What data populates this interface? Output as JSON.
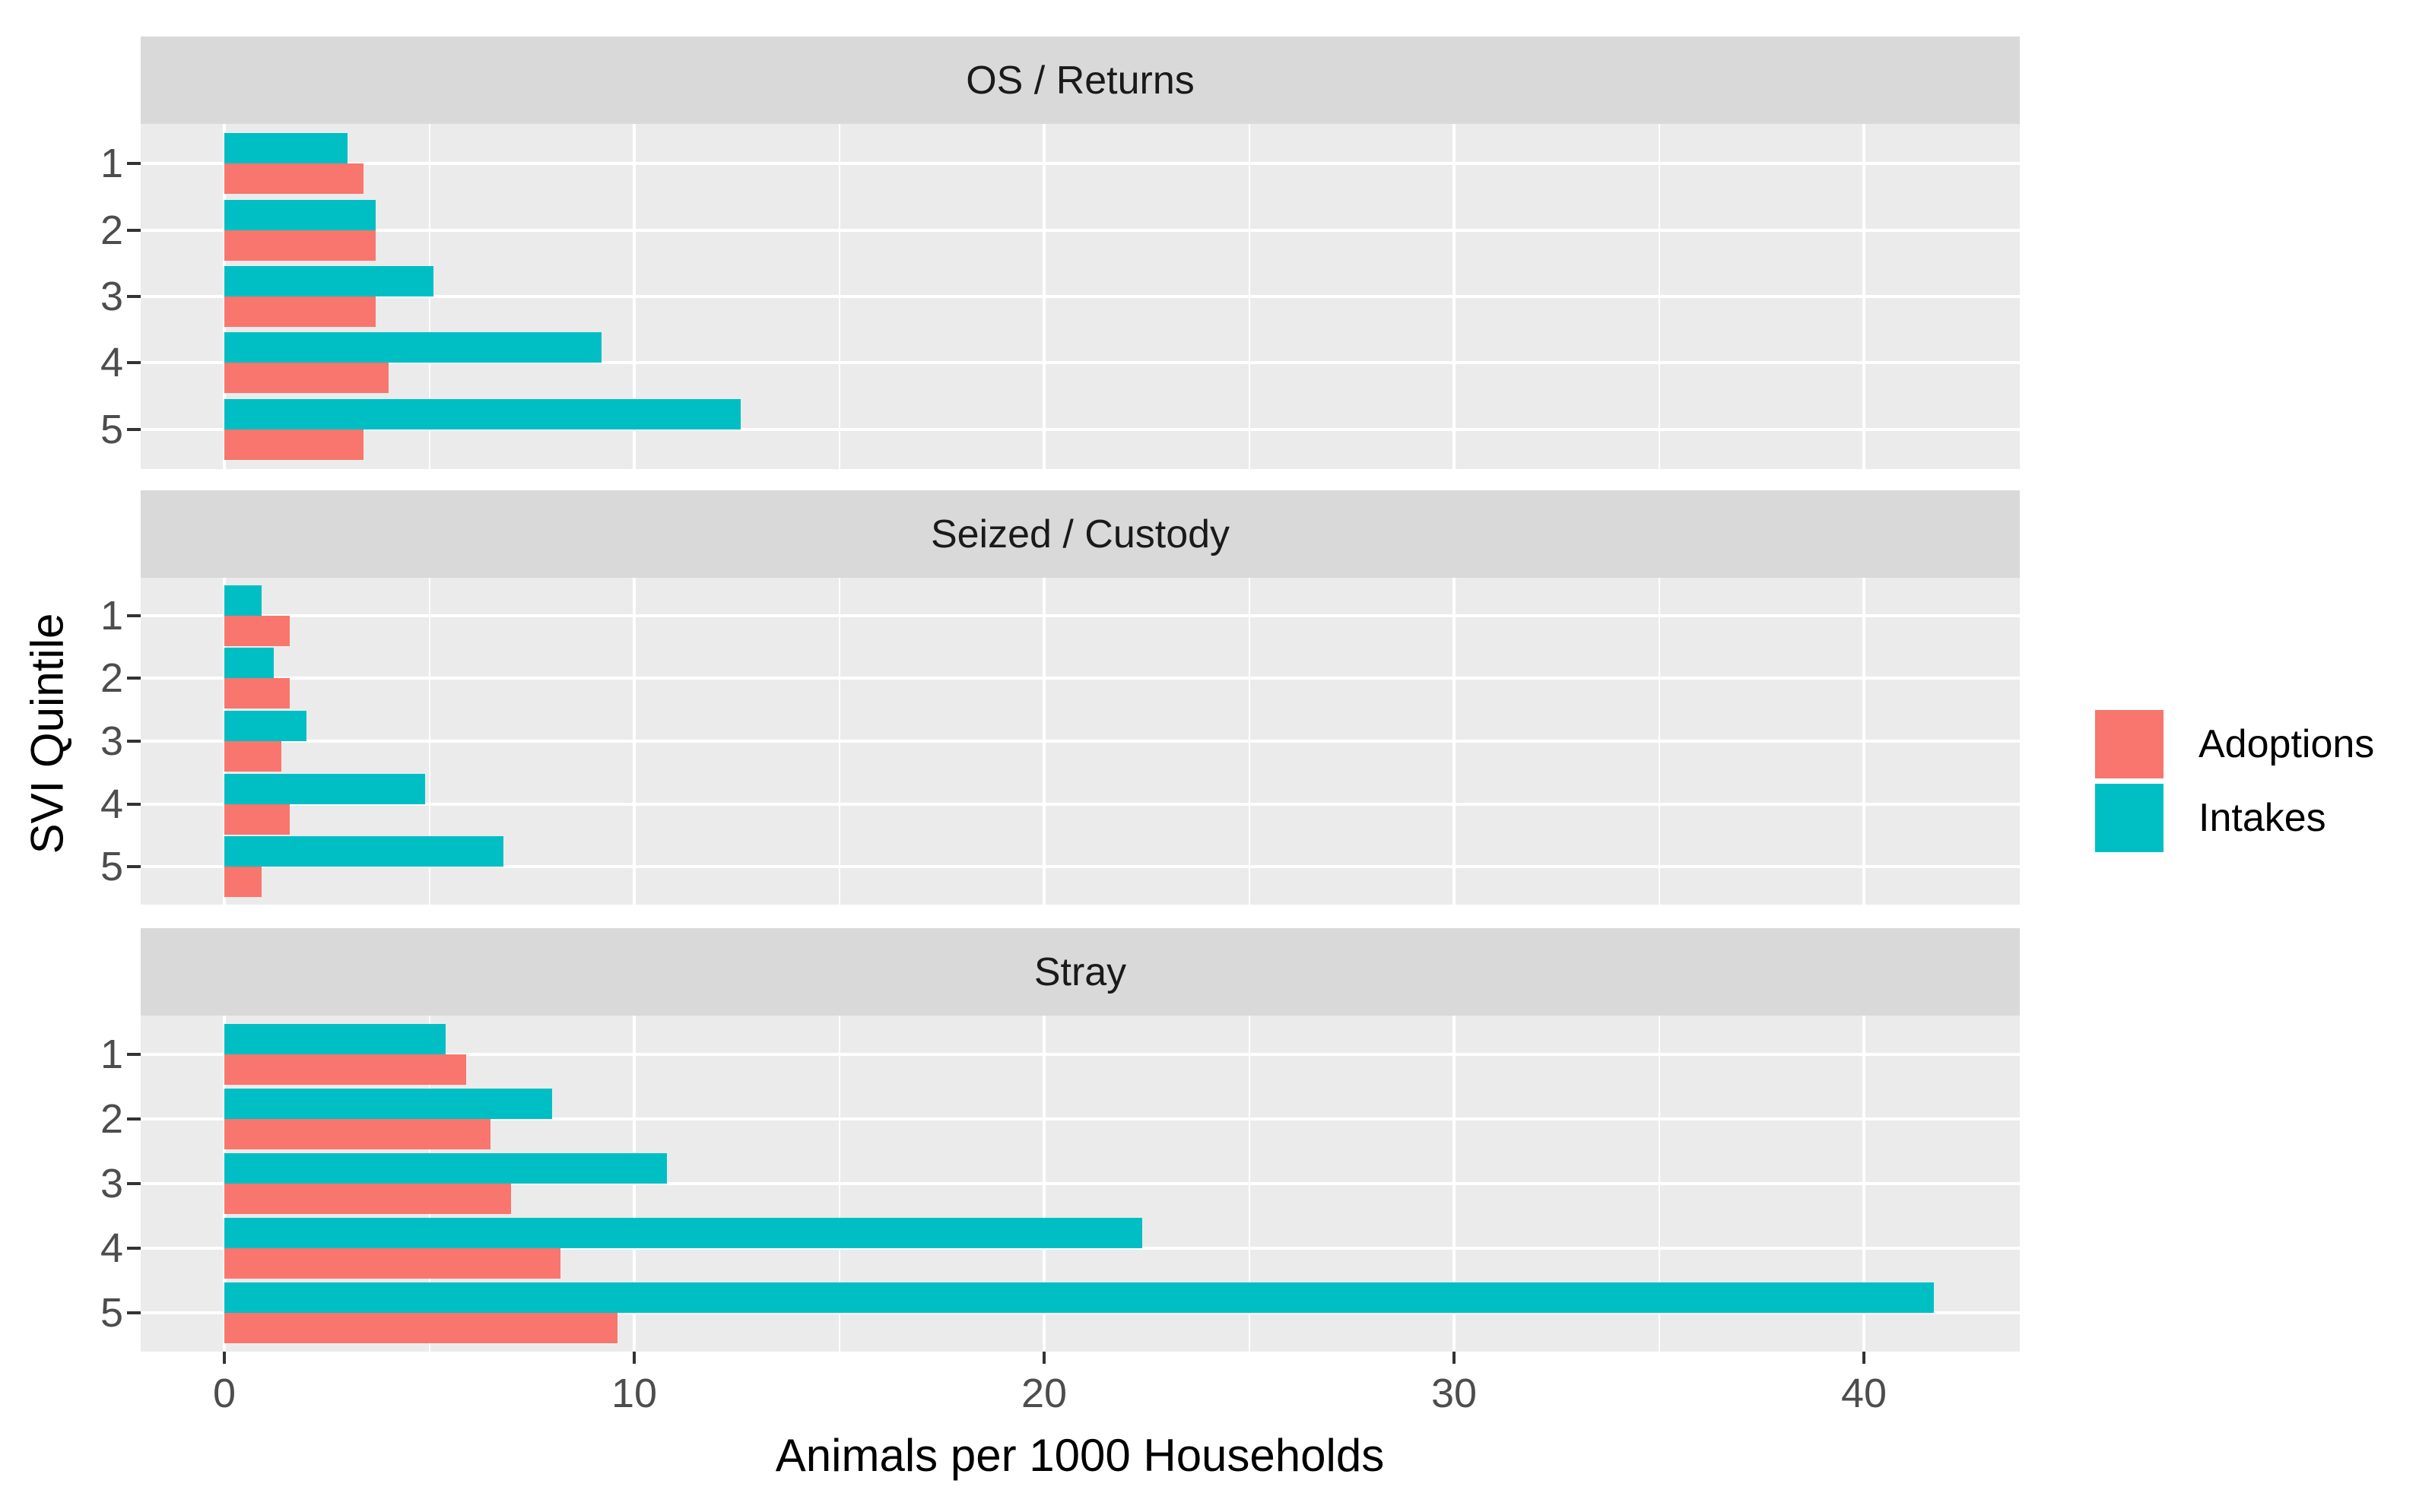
{
  "chart_data": {
    "type": "bar",
    "orientation": "horizontal",
    "title": "",
    "xlabel": "Animals per 1000 Households",
    "ylabel": "SVI Quintile",
    "categories": [
      "1",
      "2",
      "3",
      "4",
      "5"
    ],
    "x_ticks": [
      "0",
      "10",
      "20",
      "30",
      "40"
    ],
    "x_tick_values": [
      0,
      10,
      20,
      30,
      40
    ],
    "x_minor_values": [
      5,
      15,
      25,
      35
    ],
    "xlim": [
      -2.1,
      43.8
    ],
    "grid": "on",
    "legend_position": "right",
    "legend": [
      {
        "label": "Adoptions",
        "color": "#F8766D"
      },
      {
        "label": "Intakes",
        "color": "#00BFC4"
      }
    ],
    "style": {
      "panel_bg": "#EBEBEB",
      "strip_bg": "#D9D9D9",
      "gridline_color": "#FFFFFF",
      "adoptions_color": "#F8766D",
      "intakes_color": "#00BFC4"
    },
    "facets": [
      {
        "label": "OS / Returns",
        "series": [
          {
            "name": "Intakes",
            "values": [
              3.0,
              3.7,
              5.1,
              9.2,
              12.6
            ]
          },
          {
            "name": "Adoptions",
            "values": [
              3.4,
              3.7,
              3.7,
              4.0,
              3.4
            ]
          }
        ]
      },
      {
        "label": "Seized / Custody",
        "series": [
          {
            "name": "Intakes",
            "values": [
              0.9,
              1.2,
              2.0,
              4.9,
              6.8
            ]
          },
          {
            "name": "Adoptions",
            "values": [
              1.6,
              1.6,
              1.4,
              1.6,
              0.9
            ]
          }
        ]
      },
      {
        "label": "Stray",
        "series": [
          {
            "name": "Intakes",
            "values": [
              5.4,
              8.0,
              10.8,
              22.4,
              41.7
            ]
          },
          {
            "name": "Adoptions",
            "values": [
              5.9,
              6.5,
              7.0,
              8.2,
              9.6
            ]
          }
        ]
      }
    ]
  }
}
